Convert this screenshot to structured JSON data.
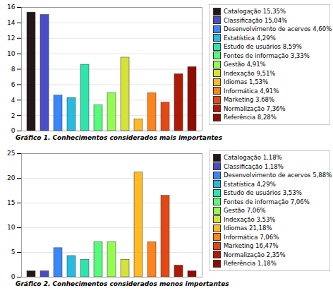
{
  "chart_data": [
    {
      "type": "bar",
      "title": "Gráfico 1. Conhecimentos considerados mais importantes",
      "categories": [
        "Catalogação 15,35%",
        "Classificação 15,04%",
        "Desenvolvimento de acervos 4,60%",
        "Estatística 4,29%",
        "Estudo de usuários 8,59%",
        "Fontes de informação 3,33%",
        "Gestão 4,91%",
        "Indexação 9,51%",
        "Idiomas 1,53%",
        "Informática 4,91%",
        "Marketing 3,68%",
        "Normalização 7,36%",
        "Referência 8,28%"
      ],
      "values": [
        15.35,
        15.04,
        4.6,
        4.29,
        8.59,
        3.33,
        4.91,
        9.51,
        1.53,
        4.91,
        3.68,
        7.36,
        8.28
      ],
      "ylim": [
        0,
        16
      ],
      "yticks": [
        0,
        2,
        4,
        6,
        8,
        10,
        12,
        14,
        16
      ],
      "grid": true,
      "legend": "right",
      "tick_labels": "y"
    },
    {
      "type": "bar",
      "title": "Gráfico 2. Conhecimentos considerados menos importantes",
      "categories": [
        "Catalogação 1,18%",
        "Classificação 1,18%",
        "Desenvolvimento de acervos 5,88%",
        "Estatística 4,29%",
        "Estudo de usuários 3,53%",
        "Fontes de informação 7,06%",
        "Gestão 7,06%",
        "Indexação 3,53%",
        "Idiomas 21,18%",
        "Informática 7,06%",
        "Marketing 16,47%",
        "Normalização 2,35%",
        "Referência 1,18%"
      ],
      "values": [
        1.18,
        1.18,
        5.88,
        4.29,
        3.53,
        7.06,
        7.06,
        3.53,
        21.18,
        7.06,
        16.47,
        2.35,
        1.18
      ],
      "ylim": [
        0,
        25
      ],
      "yticks": [
        0,
        5,
        10,
        15,
        20,
        25
      ],
      "grid": true,
      "legend": "right",
      "tick_labels": "y"
    }
  ]
}
